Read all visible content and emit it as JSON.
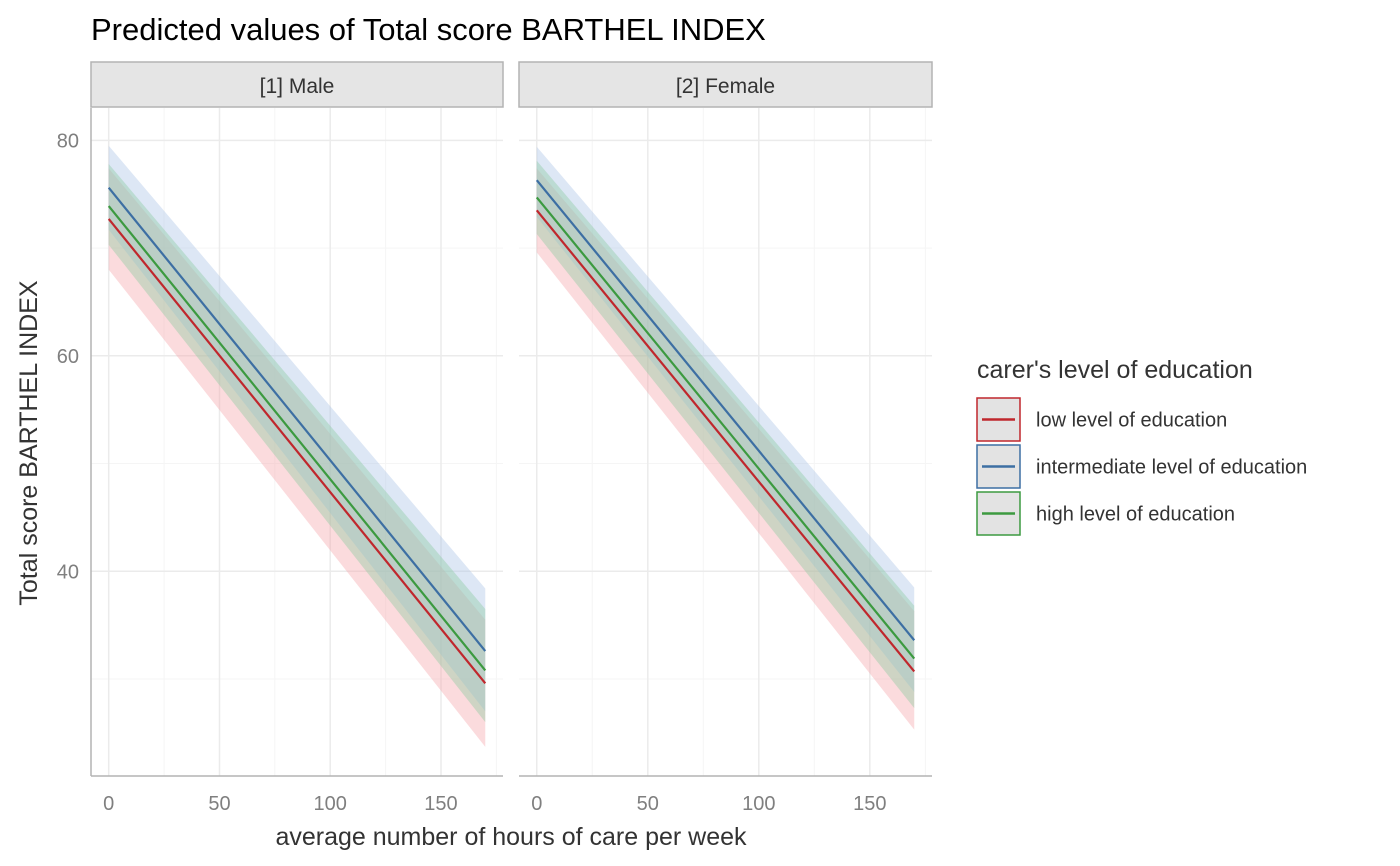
{
  "chart_data": {
    "type": "line",
    "title": "Predicted values of Total score BARTHEL INDEX",
    "xlabel": "average number of hours of care per week",
    "ylabel": "Total score BARTHEL INDEX",
    "xlim": [
      -8,
      178
    ],
    "ylim": [
      21,
      83
    ],
    "x_ticks": [
      0,
      50,
      100,
      150
    ],
    "y_ticks": [
      40,
      60,
      80
    ],
    "grid": true,
    "legend": {
      "title": "carer's level of education",
      "position": "right"
    },
    "panels": [
      {
        "name": "[1] Male",
        "series": [
          {
            "name": "low level of education",
            "color": "#c0272d",
            "band_color": "#f4a6aa",
            "x": [
              0,
              170
            ],
            "y": [
              72.7,
              29.6
            ],
            "lower": [
              68,
              23.7
            ],
            "upper": [
              77.4,
              35.5
            ]
          },
          {
            "name": "intermediate level of education",
            "color": "#3d6fa3",
            "band_color": "#aac4e6",
            "x": [
              0,
              170
            ],
            "y": [
              75.6,
              32.6
            ],
            "lower": [
              71.7,
              27
            ],
            "upper": [
              79.5,
              38.4
            ]
          },
          {
            "name": "high level of education",
            "color": "#3c9a40",
            "band_color": "#8ccba0",
            "x": [
              0,
              170
            ],
            "y": [
              73.9,
              30.8
            ],
            "lower": [
              70.3,
              26
            ],
            "upper": [
              77.8,
              36.5
            ]
          }
        ]
      },
      {
        "name": "[2] Female",
        "series": [
          {
            "name": "low level of education",
            "color": "#c0272d",
            "band_color": "#f4a6aa",
            "x": [
              0,
              170
            ],
            "y": [
              73.5,
              30.7
            ],
            "lower": [
              69.6,
              25.3
            ],
            "upper": [
              77.4,
              36.3
            ]
          },
          {
            "name": "intermediate level of education",
            "color": "#3d6fa3",
            "band_color": "#aac4e6",
            "x": [
              0,
              170
            ],
            "y": [
              76.3,
              33.6
            ],
            "lower": [
              72.9,
              28.8
            ],
            "upper": [
              79.4,
              38.5
            ]
          },
          {
            "name": "high level of education",
            "color": "#3c9a40",
            "band_color": "#8ccba0",
            "x": [
              0,
              170
            ],
            "y": [
              74.7,
              31.9
            ],
            "lower": [
              71.3,
              27.3
            ],
            "upper": [
              78.1,
              36.8
            ]
          }
        ]
      }
    ]
  },
  "colors": {
    "strip_fill": "#e5e5e5",
    "strip_border": "#b3b3b3",
    "grid_major": "#ebebeb",
    "grid_minor": "#f5f5f5",
    "axis_line": "#b3b3b3"
  }
}
